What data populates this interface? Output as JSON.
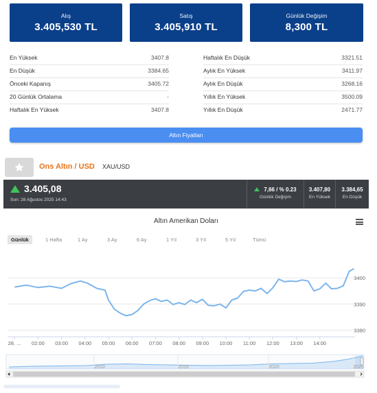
{
  "price_boxes": {
    "alis": {
      "label": "Alış",
      "value": "3.405,530 TL"
    },
    "satis": {
      "label": "Satış",
      "value": "3.405,910 TL"
    },
    "gunluk_degisim": {
      "label": "Günlük Değişim",
      "value": "8,300 TL"
    }
  },
  "stats_left": [
    {
      "label": "En Yüksek",
      "value": "3407.8"
    },
    {
      "label": "En Düşük",
      "value": "3384.65"
    },
    {
      "label": "Önceki Kapanış",
      "value": "3405.72"
    },
    {
      "label": "20 Günlük Ortalama",
      "value": "-"
    },
    {
      "label": "Haftalık En Yüksek",
      "value": "3407.8"
    }
  ],
  "stats_right": [
    {
      "label": "Haftalık En Düşük",
      "value": "3321.51"
    },
    {
      "label": "Aylık En Yüksek",
      "value": "3411.97"
    },
    {
      "label": "Aylık En Düşük",
      "value": "3268.16"
    },
    {
      "label": "Yıllık En Yüksek",
      "value": "3500.09"
    },
    {
      "label": "Yıllık En Düşük",
      "value": "2471.77"
    }
  ],
  "prices_button": "Altın Fiyatları",
  "ons": {
    "title": "Ons Altın / USD",
    "code": "XAU/USD"
  },
  "ticker": {
    "price": "3.405,08",
    "updated": "Son: 28 Ağustos 2025 14:43",
    "change": "7,66 / % 0.23",
    "change_label": "Günlük Değişim",
    "high": "3.407,80",
    "high_label": "En Yüksek",
    "low": "3.384,65",
    "low_label": "En Düşük"
  },
  "colors": {
    "navy": "#0a3f8a",
    "button_blue": "#4a8ef2",
    "orange": "#e8731c",
    "dark_bar": "#3b3e43",
    "line": "#7cb5ec",
    "up_green": "#3fc35a"
  },
  "chart_ranges": [
    {
      "label": "Günlük",
      "active": true
    },
    {
      "label": "1 Hafta",
      "active": false
    },
    {
      "label": "1 Ay",
      "active": false
    },
    {
      "label": "3 Ay",
      "active": false
    },
    {
      "label": "6 Ay",
      "active": false
    },
    {
      "label": "1 Yıl",
      "active": false
    },
    {
      "label": "3 Yıl",
      "active": false
    },
    {
      "label": "5 Yıl",
      "active": false
    },
    {
      "label": "Tümü",
      "active": false
    }
  ],
  "chart_data": {
    "type": "line",
    "title": "Altın Amerikan Doları",
    "x_tick_labels": [
      "28. ...",
      "02:00",
      "03:00",
      "04:00",
      "05:00",
      "06:00",
      "07:00",
      "08:00",
      "09:00",
      "10:00",
      "11:00",
      "12:00",
      "13:00",
      "14:00"
    ],
    "x_hours": [
      0,
      0.5,
      1.0,
      1.5,
      2.0,
      2.4,
      2.8,
      3.1,
      3.5,
      3.85,
      4.0,
      4.25,
      4.5,
      4.75,
      5.0,
      5.25,
      5.5,
      5.75,
      6.0,
      6.25,
      6.5,
      6.75,
      7.0,
      7.25,
      7.5,
      7.75,
      8.0,
      8.25,
      8.5,
      8.75,
      9.0,
      9.25,
      9.5,
      9.75,
      10.0,
      10.25,
      10.5,
      10.75,
      11.0,
      11.25,
      11.5,
      11.75,
      12.0,
      12.25,
      12.5,
      12.75,
      13.0,
      13.25,
      13.5,
      13.75,
      14.0,
      14.25,
      14.45
    ],
    "y_values": [
      3396.5,
      3397.2,
      3396.3,
      3396.8,
      3396.0,
      3397.8,
      3398.8,
      3398.0,
      3396.0,
      3395.3,
      3391.5,
      3388.0,
      3386.5,
      3385.5,
      3386.0,
      3387.5,
      3390.0,
      3391.3,
      3392.0,
      3391.0,
      3391.5,
      3389.8,
      3390.5,
      3389.8,
      3391.5,
      3390.5,
      3391.8,
      3389.5,
      3389.3,
      3390.0,
      3388.5,
      3391.5,
      3392.3,
      3394.8,
      3395.3,
      3395.0,
      3396.0,
      3394.0,
      3396.2,
      3399.5,
      3398.5,
      3398.8,
      3398.6,
      3399.2,
      3398.8,
      3395.0,
      3395.8,
      3398.0,
      3395.8,
      3396.0,
      3397.0,
      3402.5,
      3403.5
    ],
    "y_tick_labels": [
      "3400",
      "3390",
      "3380"
    ],
    "y_ticks": [
      3400,
      3390,
      3380
    ],
    "ylim": [
      3378,
      3410
    ],
    "navigator_labels": [
      "2010",
      "2015",
      "2020",
      "2025"
    ]
  }
}
